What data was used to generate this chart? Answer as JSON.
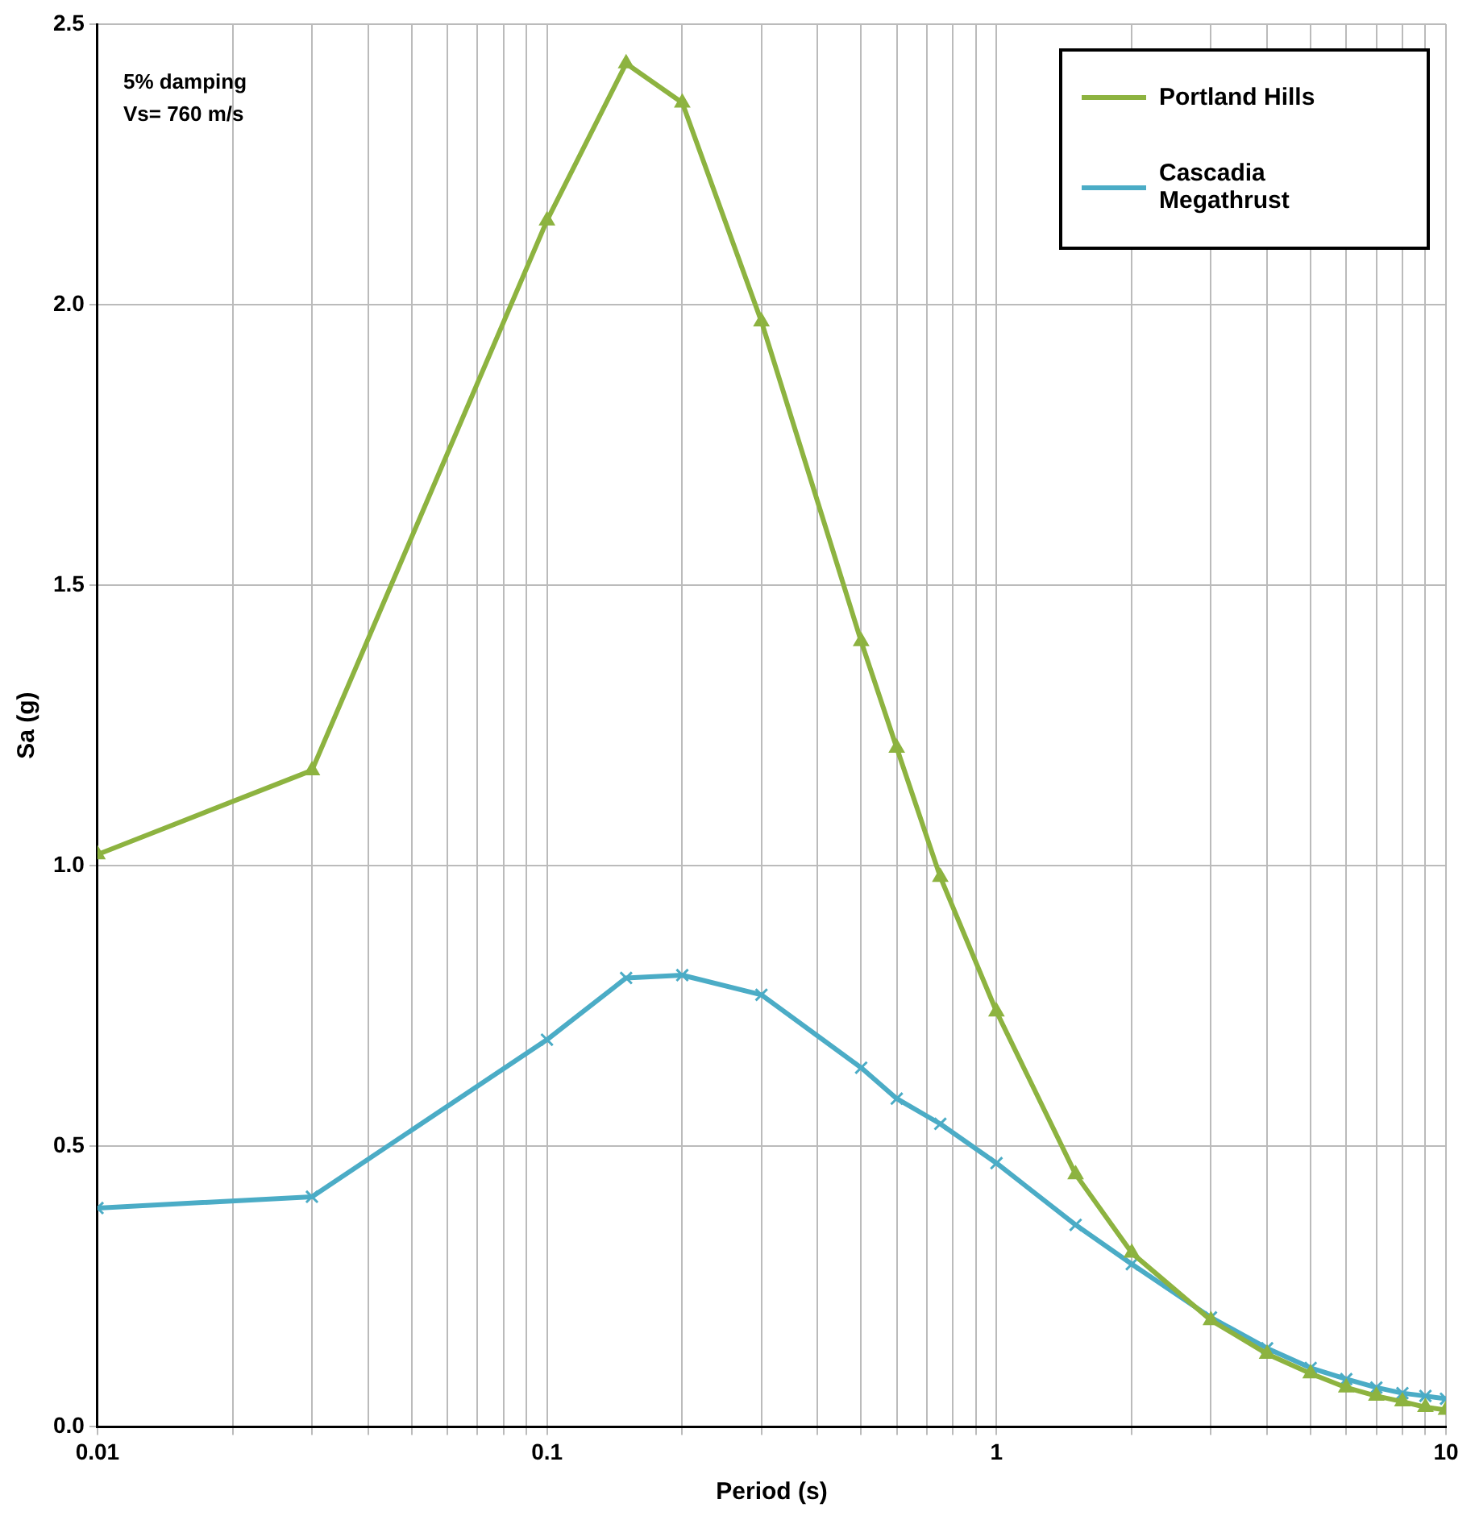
{
  "chart_data": {
    "type": "line",
    "xlabel": "Period (s)",
    "ylabel": "Sa (g)",
    "x": [
      0.01,
      0.03,
      0.1,
      0.15,
      0.2,
      0.3,
      0.5,
      0.6,
      0.75,
      1,
      1.5,
      2,
      3,
      4,
      5,
      6,
      7,
      8,
      9,
      10
    ],
    "series": [
      {
        "name": "Portland Hills",
        "color": "#8db340",
        "marker": "triangle",
        "values": [
          1.02,
          1.17,
          2.15,
          2.43,
          2.36,
          1.97,
          1.4,
          1.21,
          0.98,
          0.74,
          0.45,
          0.31,
          0.19,
          0.13,
          0.095,
          0.07,
          0.055,
          0.045,
          0.035,
          0.03
        ]
      },
      {
        "name": "Cascadia Megathrust",
        "color": "#4bacc6",
        "marker": "cross",
        "values": [
          0.39,
          0.41,
          0.69,
          0.8,
          0.805,
          0.77,
          0.64,
          0.585,
          0.54,
          0.47,
          0.36,
          0.29,
          0.195,
          0.14,
          0.105,
          0.085,
          0.07,
          0.06,
          0.055,
          0.05
        ]
      }
    ],
    "log": "x",
    "xlim": [
      0.01,
      10
    ],
    "xticks": [
      0.01,
      {
        "value": 0.02,
        "label": null
      },
      {
        "value": 0.03,
        "label": null
      },
      {
        "value": 0.04,
        "label": null
      },
      {
        "value": 0.05,
        "label": null
      },
      {
        "value": 0.06,
        "label": null
      },
      {
        "value": 0.07,
        "label": null
      },
      {
        "value": 0.08,
        "label": null
      },
      {
        "value": 0.09,
        "label": null
      },
      0.1,
      {
        "value": 0.2,
        "label": null
      },
      {
        "value": 0.3,
        "label": null
      },
      {
        "value": 0.4,
        "label": null
      },
      {
        "value": 0.5,
        "label": null
      },
      {
        "value": 0.6,
        "label": null
      },
      {
        "value": 0.7,
        "label": null
      },
      {
        "value": 0.8,
        "label": null
      },
      {
        "value": 0.9,
        "label": null
      },
      1,
      {
        "value": 2,
        "label": null
      },
      {
        "value": 3,
        "label": null
      },
      {
        "value": 4,
        "label": null
      },
      {
        "value": 5,
        "label": null
      },
      {
        "value": 6,
        "label": null
      },
      {
        "value": 7,
        "label": null
      },
      {
        "value": 8,
        "label": null
      },
      {
        "value": 9,
        "label": null
      },
      10
    ],
    "ylim": [
      0,
      2.5
    ],
    "yticks": [
      {
        "value": 0,
        "label": "0.0"
      },
      {
        "value": 0.5,
        "label": "0.5"
      },
      {
        "value": 1,
        "label": "1.0"
      },
      {
        "value": 1.5,
        "label": "1.5"
      },
      {
        "value": 2,
        "label": "2.0"
      },
      {
        "value": 2.5,
        "label": "2.5"
      }
    ],
    "grid": true,
    "legend": "top right",
    "line_style": "solid",
    "annotations": [
      "5% damping",
      "Vs= 760 m/s"
    ]
  }
}
